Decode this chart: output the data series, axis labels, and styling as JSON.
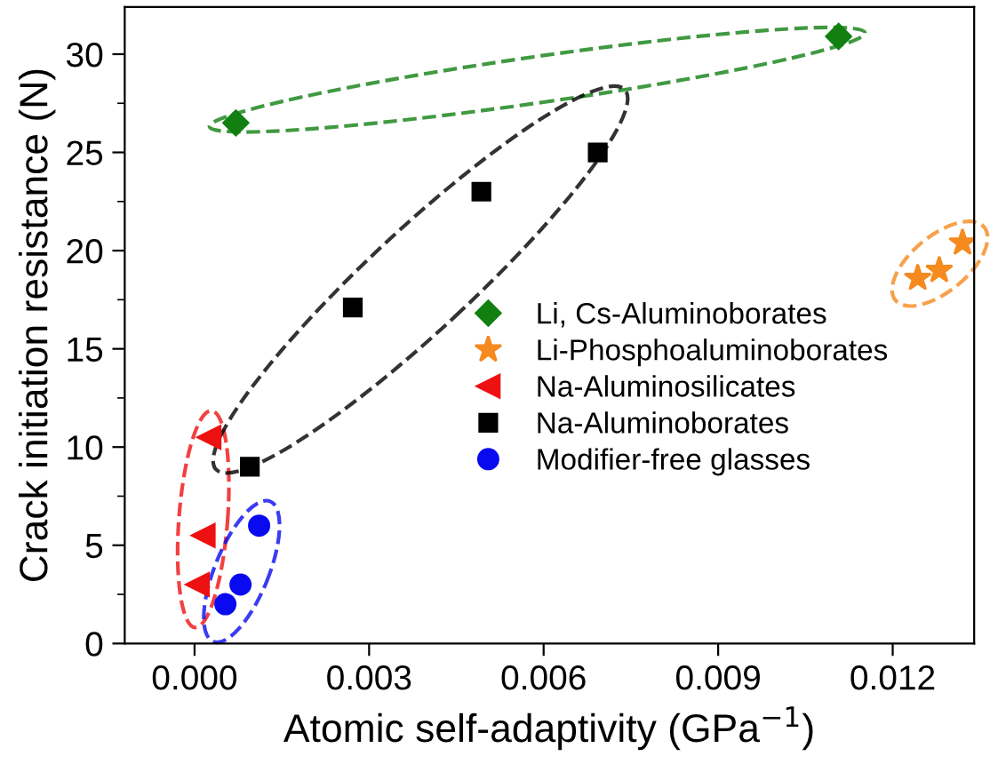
{
  "chart_data": {
    "type": "scatter",
    "xlabel": "Atomic self-adaptivity (GPa$^{−1}$)",
    "ylabel": "Crack initiation resistance (N)",
    "xlim": [
      -0.0012,
      0.0134
    ],
    "ylim": [
      0,
      32.4
    ],
    "xticks": [
      {
        "value": 0,
        "label": "0.000"
      },
      {
        "value": 0.003,
        "label": "0.003"
      },
      {
        "value": 0.006,
        "label": "0.006"
      },
      {
        "value": 0.009,
        "label": "0.009"
      },
      {
        "value": 0.012,
        "label": "0.012"
      }
    ],
    "yticks": [
      0,
      5,
      10,
      15,
      20,
      25,
      30
    ],
    "grid": false,
    "legend": "right",
    "series": [
      {
        "name": "Li, Cs-Aluminoborates",
        "color": "#118011",
        "marker": "diamond",
        "x": [
          0.00071,
          0.01107
        ],
        "values": [
          26.5,
          30.9
        ]
      },
      {
        "name": "Li-Phosphoaluminoborates",
        "color": "#f58a1f",
        "marker": "star",
        "x": [
          0.01243,
          0.0128,
          0.0132
        ],
        "values": [
          18.6,
          19.0,
          20.4
        ]
      },
      {
        "name": "Na-Aluminosilicates",
        "color": "#ee1111",
        "marker": "triangle",
        "x": [
          0.00025,
          0.00015,
          5e-05
        ],
        "values": [
          10.5,
          5.5,
          3.0
        ]
      },
      {
        "name": "Na-Aluminoborates",
        "color": "#000000",
        "marker": "square",
        "x": [
          0.00095,
          0.00272,
          0.00493,
          0.00693
        ],
        "values": [
          9.0,
          17.1,
          23.0,
          25.0
        ]
      },
      {
        "name": "Modifier-free glasses",
        "color": "#0a0af0",
        "marker": "circle",
        "x": [
          0.00053,
          0.00079,
          0.00111
        ],
        "values": [
          2.0,
          3.0,
          6.0
        ]
      }
    ]
  }
}
